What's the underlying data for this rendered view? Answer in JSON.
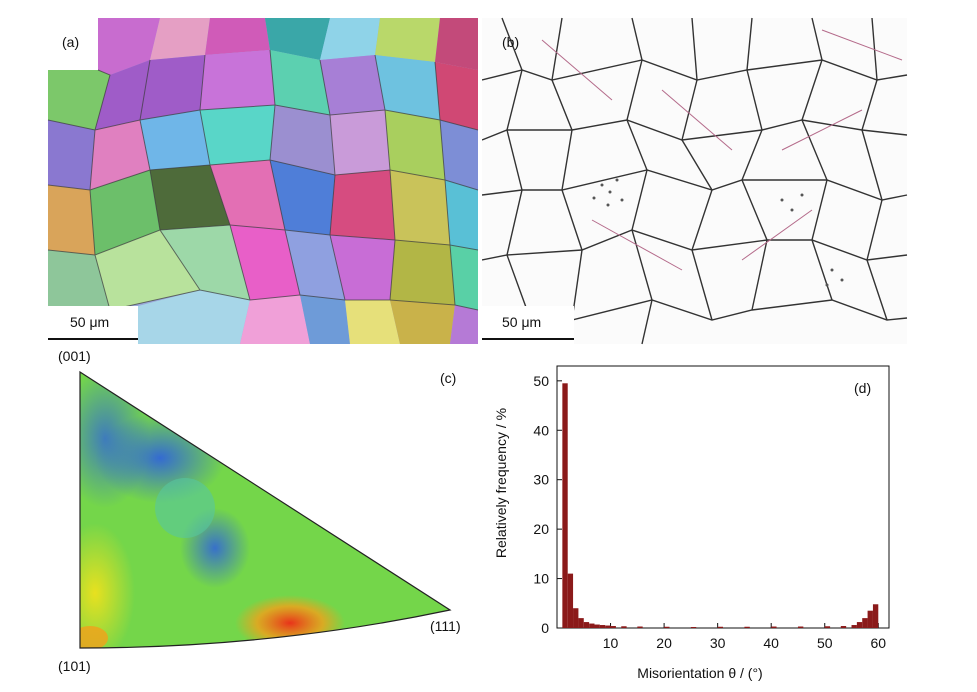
{
  "figure": {
    "panel_a": {
      "label": "(a)",
      "scale": "50 μm"
    },
    "panel_b": {
      "label": "(b)",
      "scale": "50 μm"
    },
    "panel_c": {
      "label": "(c)",
      "pole_001": "(001)",
      "pole_101": "(101)",
      "pole_111": "(111)"
    },
    "panel_d": {
      "label": "(d)"
    }
  },
  "chart_data": {
    "type": "bar",
    "title": "",
    "xlabel": "Misorientation θ / (°)",
    "ylabel": "Relatively frequency / %",
    "xlim": [
      0,
      62
    ],
    "ylim": [
      0,
      53
    ],
    "xticks": [
      10,
      20,
      30,
      40,
      50,
      60
    ],
    "yticks": [
      0,
      10,
      20,
      30,
      40,
      50
    ],
    "bar_width_deg": 1,
    "bar_color": "#8b1a1a",
    "x": [
      1.5,
      2.5,
      3.5,
      4.5,
      5.5,
      6.5,
      7.5,
      8.5,
      9.5,
      10.5,
      12.5,
      15.5,
      20.5,
      25.5,
      30.5,
      35.5,
      40.5,
      45.5,
      50.5,
      53.5,
      55.5,
      56.5,
      57.5,
      58.5,
      59.5
    ],
    "y": [
      49.5,
      11,
      4,
      2,
      1.2,
      0.9,
      0.7,
      0.6,
      0.5,
      0.4,
      0.35,
      0.3,
      0.25,
      0.2,
      0.25,
      0.25,
      0.3,
      0.3,
      0.35,
      0.4,
      0.6,
      1.2,
      2,
      3.5,
      4.8
    ]
  }
}
